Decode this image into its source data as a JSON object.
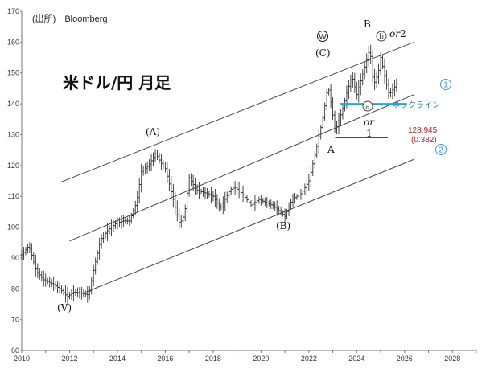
{
  "chart_data": {
    "type": "candlestick",
    "title": "米ドル/円 月足",
    "source": "(出所)　Bloomberg",
    "xlim": [
      2010,
      2029
    ],
    "ylim": [
      60,
      170
    ],
    "x_ticks": [
      2010,
      2012,
      2014,
      2016,
      2018,
      2020,
      2022,
      2024,
      2026,
      2028
    ],
    "y_ticks": [
      60,
      70,
      80,
      90,
      100,
      110,
      120,
      130,
      140,
      150,
      160,
      170
    ],
    "grid": false,
    "series_knots": [
      [
        2010.0,
        91
      ],
      [
        2010.3,
        94
      ],
      [
        2010.6,
        86
      ],
      [
        2010.9,
        83
      ],
      [
        2011.2,
        82
      ],
      [
        2011.6,
        80
      ],
      [
        2011.9,
        77.5
      ],
      [
        2012.2,
        79
      ],
      [
        2012.5,
        78.5
      ],
      [
        2012.8,
        78
      ],
      [
        2013.0,
        86
      ],
      [
        2013.3,
        96
      ],
      [
        2013.6,
        99
      ],
      [
        2013.9,
        101
      ],
      [
        2014.2,
        102
      ],
      [
        2014.5,
        102
      ],
      [
        2014.8,
        108
      ],
      [
        2015.0,
        118
      ],
      [
        2015.3,
        120
      ],
      [
        2015.6,
        124
      ],
      [
        2015.8,
        121
      ],
      [
        2016.0,
        119
      ],
      [
        2016.3,
        110
      ],
      [
        2016.6,
        101
      ],
      [
        2016.8,
        104
      ],
      [
        2017.0,
        116
      ],
      [
        2017.3,
        112
      ],
      [
        2017.7,
        111
      ],
      [
        2018.0,
        110
      ],
      [
        2018.3,
        106
      ],
      [
        2018.7,
        112
      ],
      [
        2018.9,
        113
      ],
      [
        2019.2,
        111
      ],
      [
        2019.6,
        107
      ],
      [
        2019.9,
        109
      ],
      [
        2020.2,
        108
      ],
      [
        2020.5,
        107
      ],
      [
        2020.8,
        105
      ],
      [
        2021.0,
        103.5
      ],
      [
        2021.3,
        109
      ],
      [
        2021.7,
        111
      ],
      [
        2022.0,
        115
      ],
      [
        2022.3,
        125
      ],
      [
        2022.6,
        136
      ],
      [
        2022.8,
        146
      ],
      [
        2022.95,
        139
      ],
      [
        2023.1,
        131
      ],
      [
        2023.4,
        138
      ],
      [
        2023.6,
        144
      ],
      [
        2023.8,
        149
      ],
      [
        2024.0,
        143
      ],
      [
        2024.3,
        151
      ],
      [
        2024.55,
        158
      ],
      [
        2024.7,
        146
      ],
      [
        2024.9,
        150
      ],
      [
        2025.0,
        155
      ],
      [
        2025.2,
        148
      ],
      [
        2025.35,
        143
      ],
      [
        2025.55,
        145
      ],
      [
        2025.7,
        147
      ]
    ],
    "channel_lines": [
      {
        "from": [
          2011.6,
          114.5
        ],
        "to": [
          2026.4,
          160
        ]
      },
      {
        "from": [
          2012.0,
          95.5
        ],
        "to": [
          2026.4,
          143
        ]
      },
      {
        "from": [
          2012.7,
          79
        ],
        "to": [
          2026.4,
          122
        ]
      }
    ],
    "neckline": {
      "from": [
        2023.3,
        140
      ],
      "to": [
        2026.1,
        140
      ],
      "color": "#2aa6cc"
    },
    "red_level": {
      "from": [
        2023.1,
        129
      ],
      "to": [
        2025.3,
        129
      ],
      "color": "#b21e2a"
    },
    "annotations": {
      "v": "(V)",
      "a_paren": "(A)",
      "b_paren": "(B)",
      "c_paren": "(C)",
      "w_circle": "W",
      "a": "A",
      "b": "B",
      "one": "1",
      "or1": "or",
      "or2": "or",
      "two": "2",
      "a_small": "a",
      "b_small": "b",
      "neckline": "ネックライン",
      "level_value": "128.945",
      "level_ratio": "(0.382)",
      "channel_1": "1",
      "channel_2": "2"
    },
    "colors": {
      "bar": "#333333",
      "channel": "#444444",
      "neckline": "#2aa6cc",
      "red": "#c0262d",
      "circle": "#3a9ad9"
    }
  }
}
